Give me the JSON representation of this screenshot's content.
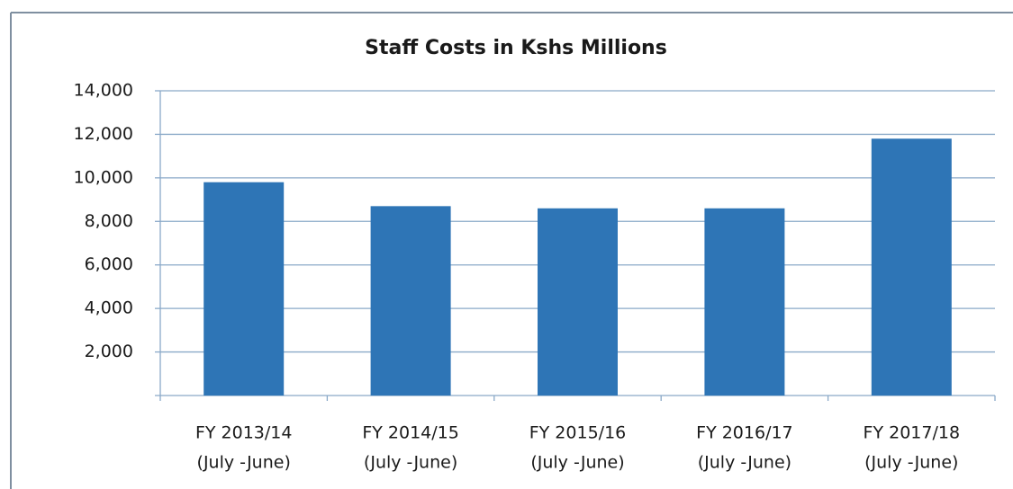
{
  "chart_data": {
    "type": "bar",
    "title": "Staff Costs in Kshs Millions",
    "categories": [
      [
        "FY 2013/14",
        "(July -June)"
      ],
      [
        "FY 2014/15",
        "(July -June)"
      ],
      [
        "FY 2015/16",
        "(July -June)"
      ],
      [
        "FY 2016/17",
        "(July -June)"
      ],
      [
        "FY 2017/18",
        "(July -June)"
      ]
    ],
    "values": [
      9800,
      8700,
      8600,
      8600,
      11800
    ],
    "color": "#2e75b6",
    "ylim": [
      0,
      14000
    ],
    "yticks": [
      {
        "value": 2000,
        "label": "2,000"
      },
      {
        "value": 4000,
        "label": "4,000"
      },
      {
        "value": 6000,
        "label": "6,000"
      },
      {
        "value": 8000,
        "label": "8,000"
      },
      {
        "value": 10000,
        "label": "10,000"
      },
      {
        "value": 12000,
        "label": "12,000"
      },
      {
        "value": 14000,
        "label": "14,000"
      }
    ],
    "grid": true
  }
}
